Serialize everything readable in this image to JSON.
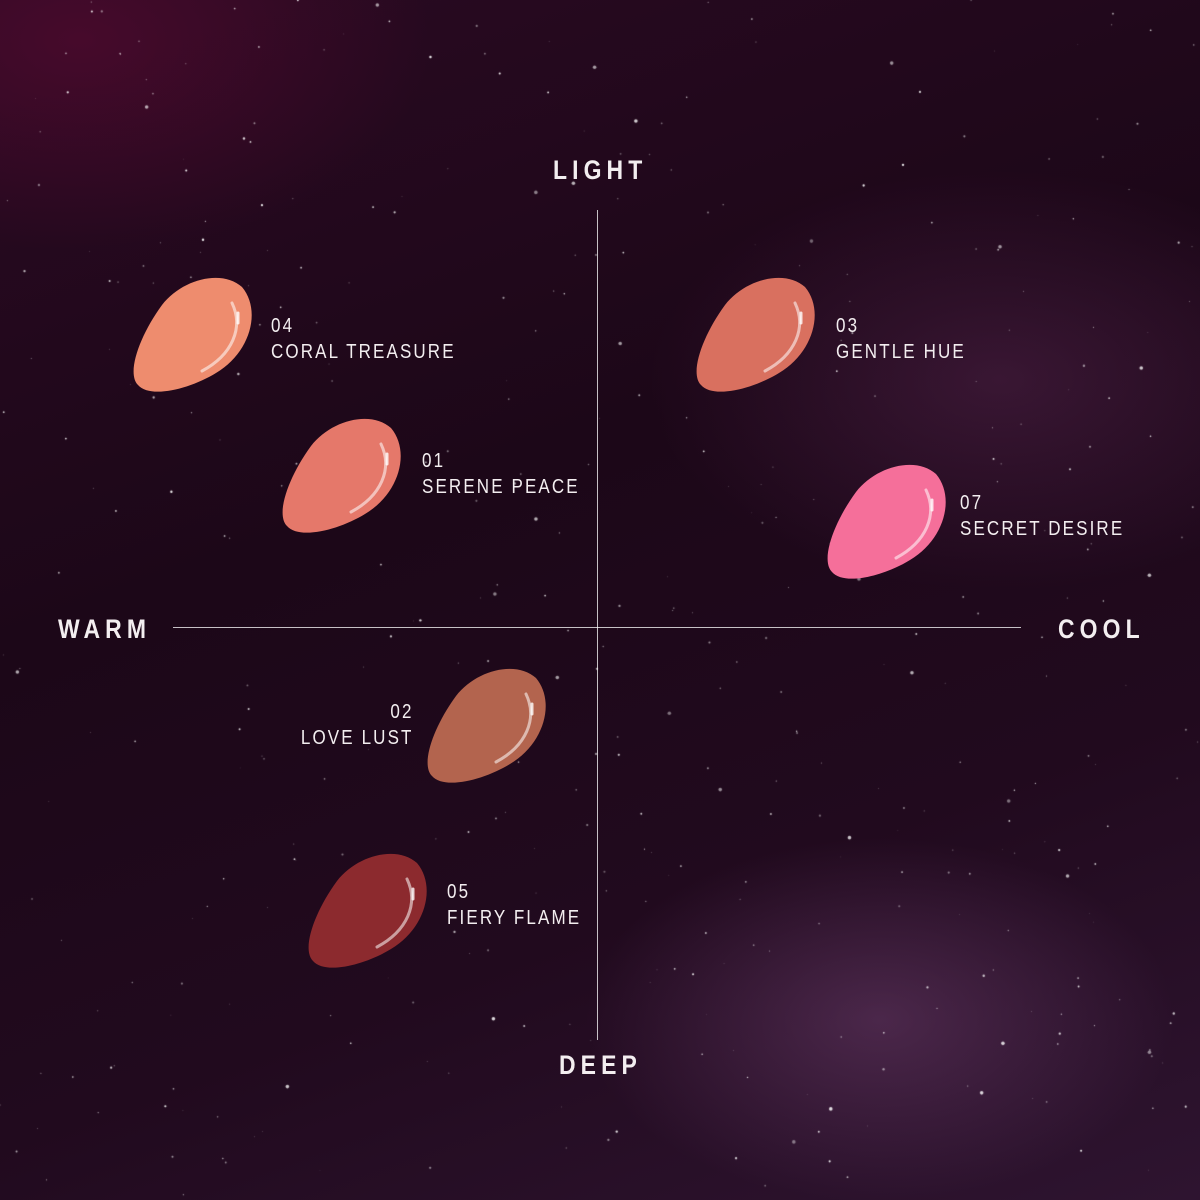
{
  "axes": {
    "top": "LIGHT",
    "bottom": "DEEP",
    "left": "WARM",
    "right": "COOL"
  },
  "shades": [
    {
      "number": "04",
      "name": "CORAL TREASURE",
      "color": "#ee8c6e"
    },
    {
      "number": "01",
      "name": "SERENE PEACE",
      "color": "#e5786a"
    },
    {
      "number": "03",
      "name": "GENTLE HUE",
      "color": "#d9705f"
    },
    {
      "number": "07",
      "name": "SECRET DESIRE",
      "color": "#f56f9a"
    },
    {
      "number": "02",
      "name": "LOVE LUST",
      "color": "#b3644e"
    },
    {
      "number": "05",
      "name": "FIERY FLAME",
      "color": "#8c2a2e"
    }
  ]
}
